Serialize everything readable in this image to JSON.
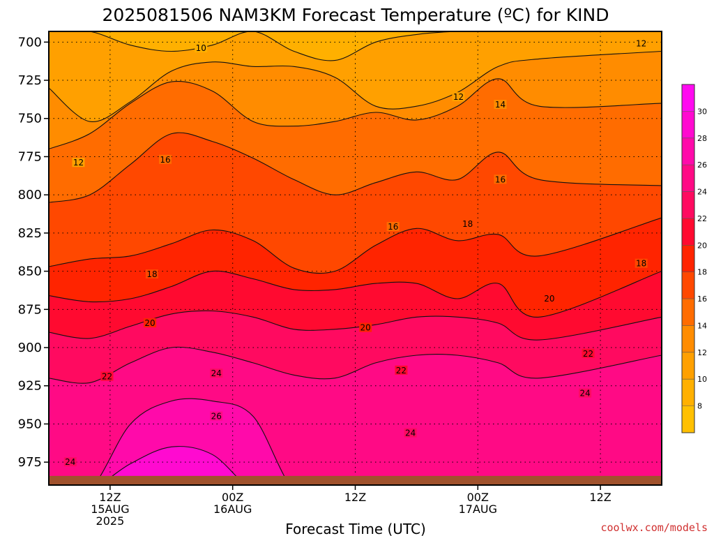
{
  "chart_data": {
    "type": "heatmap",
    "title": "2025081506 NAM3KM Forecast Temperature (ºC) for KIND",
    "xlabel": "Forecast Time (UTC)",
    "ylabel": "",
    "x_range_hours": [
      0,
      60
    ],
    "x_ticks": [
      {
        "hour": 6,
        "lines": [
          "12Z",
          "15AUG",
          "2025"
        ]
      },
      {
        "hour": 18,
        "lines": [
          "00Z",
          "16AUG"
        ]
      },
      {
        "hour": 30,
        "lines": [
          "12Z"
        ]
      },
      {
        "hour": 42,
        "lines": [
          "00Z",
          "17AUG"
        ]
      },
      {
        "hour": 54,
        "lines": [
          "12Z"
        ]
      }
    ],
    "y_range_hpa": [
      990,
      693
    ],
    "y_ticks": [
      700,
      725,
      750,
      775,
      800,
      825,
      850,
      875,
      900,
      925,
      950,
      975
    ],
    "grid": true,
    "colorbar": {
      "placement": "right",
      "range": [
        6,
        32
      ],
      "ticks": [
        8,
        10,
        12,
        14,
        16,
        18,
        20,
        22,
        24,
        26,
        28,
        30
      ],
      "bands": [
        {
          "min": 6,
          "max": 8,
          "color": "#ffc000"
        },
        {
          "min": 8,
          "max": 10,
          "color": "#ffb000"
        },
        {
          "min": 10,
          "max": 12,
          "color": "#ffa000"
        },
        {
          "min": 12,
          "max": 14,
          "color": "#ff8c00"
        },
        {
          "min": 14,
          "max": 16,
          "color": "#ff6c00"
        },
        {
          "min": 16,
          "max": 18,
          "color": "#ff4800"
        },
        {
          "min": 18,
          "max": 20,
          "color": "#ff2400"
        },
        {
          "min": 20,
          "max": 22,
          "color": "#ff0a30"
        },
        {
          "min": 22,
          "max": 24,
          "color": "#ff0a60"
        },
        {
          "min": 24,
          "max": 26,
          "color": "#ff0a85"
        },
        {
          "min": 26,
          "max": 28,
          "color": "#ff0aaa"
        },
        {
          "min": 28,
          "max": 30,
          "color": "#ff0ad0"
        },
        {
          "min": 30,
          "max": 32,
          "color": "#ff0af0"
        }
      ]
    },
    "levels": [
      10,
      12,
      14,
      16,
      18,
      20,
      22,
      24,
      26,
      28
    ],
    "contours": [
      {
        "value": 10,
        "hpa": [
          693,
          693,
          702,
          706,
          702,
          693,
          706,
          712,
          700,
          695,
          693,
          693,
          693,
          693
        ]
      },
      {
        "value": 12,
        "hpa": [
          730,
          752,
          739,
          719,
          713,
          716,
          716,
          723,
          742,
          742,
          733,
          716,
          711,
          706
        ]
      },
      {
        "value": 14,
        "hpa": [
          770,
          760,
          740,
          726,
          732,
          752,
          755,
          752,
          746,
          751,
          742,
          724,
          742,
          740
        ]
      },
      {
        "value": 16,
        "hpa": [
          805,
          800,
          780,
          760,
          765,
          776,
          790,
          800,
          792,
          785,
          790,
          772,
          790,
          794
        ]
      },
      {
        "value": 18,
        "hpa": [
          847,
          842,
          840,
          832,
          823,
          830,
          848,
          850,
          833,
          822,
          830,
          826,
          840,
          815
        ]
      },
      {
        "value": 20,
        "hpa": [
          866,
          870,
          868,
          860,
          850,
          855,
          862,
          862,
          858,
          858,
          868,
          858,
          880,
          850
        ]
      },
      {
        "value": 22,
        "hpa": [
          890,
          894,
          886,
          878,
          876,
          880,
          888,
          888,
          885,
          880,
          880,
          884,
          895,
          880
        ]
      },
      {
        "value": 24,
        "hpa": [
          920,
          923,
          910,
          900,
          903,
          910,
          918,
          920,
          910,
          905,
          905,
          910,
          920,
          905
        ]
      },
      {
        "value": 26,
        "hpa": [
          993,
          993,
          950,
          935,
          935,
          945,
          993,
          993,
          993,
          993,
          993,
          993,
          993,
          993
        ]
      },
      {
        "value": 28,
        "hpa": [
          993,
          993,
          976,
          965,
          970,
          993,
          993,
          993,
          993,
          993,
          993,
          993,
          993,
          993
        ]
      }
    ],
    "contour_x_hours": [
      0,
      4,
      8,
      12,
      16,
      20,
      24,
      28,
      32,
      36,
      40,
      44,
      48,
      60
    ],
    "contour_labels": [
      {
        "value": "10",
        "hour": 14.9,
        "hpa": 704
      },
      {
        "value": "12",
        "hour": 58.0,
        "hpa": 701
      },
      {
        "value": "12",
        "hour": 40.1,
        "hpa": 736
      },
      {
        "value": "12",
        "hour": 2.9,
        "hpa": 779
      },
      {
        "value": "14",
        "hour": 44.2,
        "hpa": 741
      },
      {
        "value": "16",
        "hour": 11.4,
        "hpa": 777
      },
      {
        "value": "16",
        "hour": 44.2,
        "hpa": 790
      },
      {
        "value": "16",
        "hour": 33.7,
        "hpa": 821
      },
      {
        "value": "18",
        "hour": 41.0,
        "hpa": 819
      },
      {
        "value": "18",
        "hour": 58.0,
        "hpa": 845
      },
      {
        "value": "18",
        "hour": 10.1,
        "hpa": 852
      },
      {
        "value": "20",
        "hour": 49.0,
        "hpa": 868
      },
      {
        "value": "20",
        "hour": 9.9,
        "hpa": 884
      },
      {
        "value": "20",
        "hour": 31.0,
        "hpa": 887
      },
      {
        "value": "22",
        "hour": 52.8,
        "hpa": 904
      },
      {
        "value": "22",
        "hour": 5.7,
        "hpa": 919
      },
      {
        "value": "22",
        "hour": 34.5,
        "hpa": 915
      },
      {
        "value": "24",
        "hour": 16.4,
        "hpa": 917
      },
      {
        "value": "24",
        "hour": 52.5,
        "hpa": 930
      },
      {
        "value": "24",
        "hour": 35.4,
        "hpa": 956
      },
      {
        "value": "24",
        "hour": 2.1,
        "hpa": 975
      },
      {
        "value": "26",
        "hour": 16.4,
        "hpa": 945
      }
    ],
    "terrain_color": "#a0522d",
    "terrain_top_hpa": 984
  },
  "credit": "coolwx.com/models"
}
